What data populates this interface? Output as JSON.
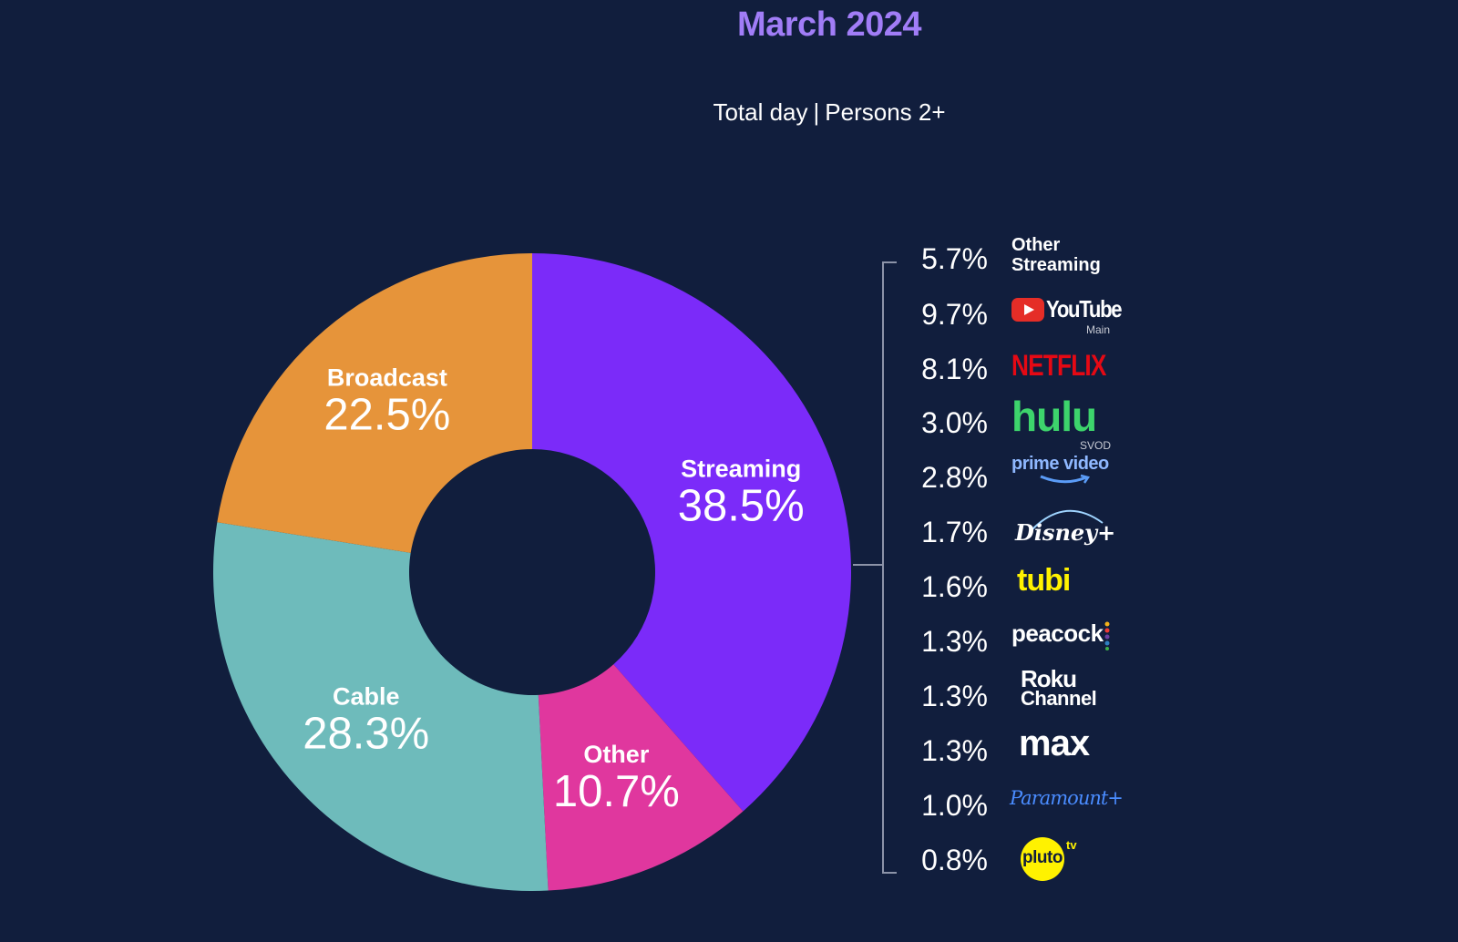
{
  "title": "March 2024",
  "subtitle": {
    "left": "Total day",
    "separator": "|",
    "right": "Persons 2+"
  },
  "colors": {
    "background": "#111e3d",
    "title": "#a17df7",
    "streaming": "#7b2bf9",
    "other": "#e0379e",
    "cable": "#6ebbbb",
    "broadcast": "#e6943a"
  },
  "chart_data": {
    "type": "pie",
    "donut": true,
    "title": "March 2024",
    "subtitle": "Total day | Persons 2+",
    "slices": [
      {
        "label": "Streaming",
        "value": 38.5,
        "display": "38.5%",
        "color": "#7b2bf9"
      },
      {
        "label": "Other",
        "value": 10.7,
        "display": "10.7%",
        "color": "#e0379e"
      },
      {
        "label": "Cable",
        "value": 28.3,
        "display": "28.3%",
        "color": "#6ebbbb"
      },
      {
        "label": "Broadcast",
        "value": 22.5,
        "display": "22.5%",
        "color": "#e6943a"
      }
    ],
    "streaming_breakdown": [
      {
        "label": "Other Streaming",
        "value": 5.7,
        "display": "5.7%"
      },
      {
        "label": "YouTube Main",
        "value": 9.7,
        "display": "9.7%"
      },
      {
        "label": "Netflix",
        "value": 8.1,
        "display": "8.1%"
      },
      {
        "label": "Hulu SVOD",
        "value": 3.0,
        "display": "3.0%"
      },
      {
        "label": "Prime Video",
        "value": 2.8,
        "display": "2.8%"
      },
      {
        "label": "Disney+",
        "value": 1.7,
        "display": "1.7%"
      },
      {
        "label": "Tubi",
        "value": 1.6,
        "display": "1.6%"
      },
      {
        "label": "Peacock",
        "value": 1.3,
        "display": "1.3%"
      },
      {
        "label": "Roku Channel",
        "value": 1.3,
        "display": "1.3%"
      },
      {
        "label": "Max",
        "value": 1.3,
        "display": "1.3%"
      },
      {
        "label": "Paramount+",
        "value": 1.0,
        "display": "1.0%"
      },
      {
        "label": "Pluto TV",
        "value": 0.8,
        "display": "0.8%"
      }
    ]
  },
  "logos": {
    "other_streaming": {
      "line1": "Other",
      "line2": "Streaming"
    },
    "youtube": {
      "word": "YouTube",
      "sub": "Main",
      "icon": "youtube-play-icon"
    },
    "netflix": {
      "word": "NETFLIX"
    },
    "hulu": {
      "word": "hulu",
      "sub": "SVOD"
    },
    "prime": {
      "word": "prime video",
      "icon": "amazon-smile-icon"
    },
    "disney": {
      "word": "Disney+"
    },
    "tubi": {
      "word": "tubi"
    },
    "peacock": {
      "word": "peacock"
    },
    "roku": {
      "line1": "Roku",
      "line2": "Channel"
    },
    "max": {
      "word": "max"
    },
    "paramount": {
      "word": "Paramount+"
    },
    "pluto": {
      "word": "pluto",
      "sup": "tv"
    }
  }
}
